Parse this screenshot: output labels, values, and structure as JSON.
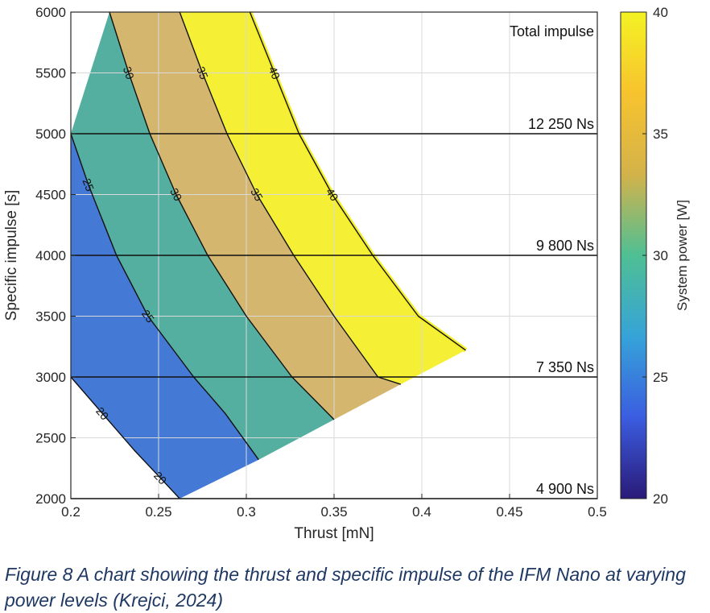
{
  "caption": "Figure 8 A chart showing the thrust and specific impulse of the IFM Nano at varying power levels (Krejci, 2024)",
  "chart_data": {
    "type": "contour",
    "xlabel": "Thrust [mN]",
    "ylabel": "Specific impulse [s]",
    "xlim": [
      0.2,
      0.5
    ],
    "ylim": [
      2000,
      6000
    ],
    "xticks": [
      0.2,
      0.25,
      0.3,
      0.35,
      0.4,
      0.45,
      0.5
    ],
    "xtick_labels": [
      "0.2",
      "0.25",
      "0.3",
      "0.35",
      "0.4",
      "0.45",
      "0.5"
    ],
    "yticks": [
      2000,
      2500,
      3000,
      3500,
      4000,
      4500,
      5000,
      5500,
      6000
    ],
    "grid": true,
    "colorbar": {
      "label": "System power [W]",
      "range": [
        20,
        40
      ],
      "ticks": [
        20,
        25,
        30,
        35,
        40
      ],
      "colormap": [
        "#2a1a78",
        "#3b5de0",
        "#36a3d8",
        "#4fbf94",
        "#d4b24a",
        "#f7c32e",
        "#f4f223"
      ]
    },
    "contours": [
      {
        "level": 20,
        "label": "20",
        "color": "#2c2a7a",
        "points": [
          [
            0.2,
            3000
          ],
          [
            0.218,
            2700
          ],
          [
            0.236,
            2400
          ],
          [
            0.251,
            2170
          ],
          [
            0.262,
            2000
          ]
        ]
      },
      {
        "level": 25,
        "label": "25",
        "color": "#3a73d4",
        "points": [
          [
            0.2,
            5000
          ],
          [
            0.21,
            4580
          ],
          [
            0.226,
            4000
          ],
          [
            0.244,
            3500
          ],
          [
            0.27,
            3000
          ],
          [
            0.288,
            2700
          ],
          [
            0.307,
            2320
          ]
        ]
      },
      {
        "level": 30,
        "label": "30",
        "color": "#4bab9c",
        "points": [
          [
            0.222,
            6000
          ],
          [
            0.233,
            5500
          ],
          [
            0.245,
            5000
          ],
          [
            0.26,
            4500
          ],
          [
            0.278,
            4000
          ],
          [
            0.3,
            3500
          ],
          [
            0.326,
            3000
          ],
          [
            0.35,
            2650
          ]
        ]
      },
      {
        "level": 35,
        "label": "35",
        "color": "#d2b266",
        "points": [
          [
            0.262,
            6000
          ],
          [
            0.275,
            5500
          ],
          [
            0.289,
            5000
          ],
          [
            0.306,
            4500
          ],
          [
            0.327,
            4000
          ],
          [
            0.35,
            3500
          ],
          [
            0.375,
            3000
          ],
          [
            0.388,
            2940
          ]
        ]
      },
      {
        "level": 40,
        "label": "40",
        "color": "#f4ef2a",
        "points": [
          [
            0.302,
            6000
          ],
          [
            0.316,
            5500
          ],
          [
            0.33,
            5000
          ],
          [
            0.349,
            4500
          ],
          [
            0.372,
            4000
          ],
          [
            0.398,
            3500
          ],
          [
            0.425,
            3220
          ]
        ]
      }
    ],
    "total_impulse": {
      "title": "Total impulse",
      "lines": [
        {
          "isp": 2000,
          "label": "4 900 Ns"
        },
        {
          "isp": 3000,
          "label": "7 350 Ns"
        },
        {
          "isp": 4000,
          "label": "9 800 Ns"
        },
        {
          "isp": 5000,
          "label": "12 250 Ns"
        }
      ]
    }
  }
}
